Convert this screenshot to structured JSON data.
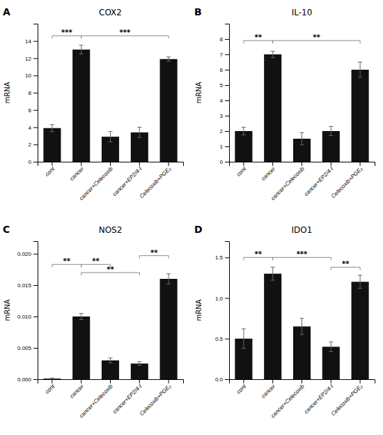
{
  "chart_data": [
    {
      "type": "bar",
      "title": "COX2",
      "panel_label": "A",
      "categories": [
        "cont",
        "cancer",
        "cancer+Celecoxib",
        "cancer+EP2/4-I",
        "Celecoxib+PGE₂"
      ],
      "values": [
        3.9,
        13.0,
        2.9,
        3.4,
        11.9
      ],
      "errors": [
        0.4,
        0.5,
        0.6,
        0.6,
        0.25
      ],
      "ylabel": "mRNA",
      "ylim": [
        0,
        16
      ],
      "yticks": [
        0,
        2,
        4,
        6,
        8,
        10,
        12,
        14
      ],
      "color": "#111111",
      "brackets": [
        {
          "x1": "cont",
          "x2": "cancer",
          "y": 14.6,
          "label": "***"
        },
        {
          "x1": "cancer",
          "x2": "Celecoxib+PGE₂",
          "y": 14.6,
          "label": "***"
        }
      ]
    },
    {
      "type": "bar",
      "title": "IL-10",
      "panel_label": "B",
      "categories": [
        "cont",
        "cancer",
        "cancer+Celecoxib",
        "cancer+EP2/4-I",
        "Celecoxib+PGE₂"
      ],
      "values": [
        2.0,
        7.0,
        1.5,
        2.0,
        6.0
      ],
      "errors": [
        0.25,
        0.2,
        0.4,
        0.3,
        0.5
      ],
      "ylabel": "mRNA",
      "ylim": [
        0,
        9
      ],
      "yticks": [
        0,
        1,
        2,
        3,
        4,
        5,
        6,
        7,
        8
      ],
      "color": "#111111",
      "brackets": [
        {
          "x1": "cont",
          "x2": "cancer",
          "y": 7.9,
          "label": "**"
        },
        {
          "x1": "cancer",
          "x2": "Celecoxib+PGE₂",
          "y": 7.9,
          "label": "**"
        }
      ]
    },
    {
      "type": "bar",
      "title": "NOS2",
      "panel_label": "C",
      "categories": [
        "cont",
        "cancer",
        "cancer+Celecoxib",
        "cancer+EP2/4-I",
        "Celecoxib+PGE₂"
      ],
      "values": [
        0.0001,
        0.01,
        0.003,
        0.0025,
        0.016
      ],
      "errors": [
        0.0001,
        0.0005,
        0.0004,
        0.0003,
        0.0008
      ],
      "ylabel": "mRNA",
      "ylim": [
        0,
        0.022
      ],
      "yticks": [
        {
          "value": 0.0,
          "label": "0.000"
        },
        {
          "value": 0.005,
          "label": "0.005"
        },
        {
          "value": 0.01,
          "label": "0.010"
        },
        {
          "value": 0.015,
          "label": "0.015"
        },
        {
          "value": 0.02,
          "label": "0.020"
        }
      ],
      "color": "#111111",
      "brackets": [
        {
          "x1": "cont",
          "x2": "cancer",
          "y": 0.0183,
          "label": "**"
        },
        {
          "x1": "cancer",
          "x2": "cancer+Celecoxib",
          "y": 0.0183,
          "label": "**"
        },
        {
          "x1": "cancer",
          "x2": "cancer+EP2/4-I",
          "y": 0.017,
          "label": "**"
        },
        {
          "x1": "cancer+EP2/4-I",
          "x2": "Celecoxib+PGE₂",
          "y": 0.0197,
          "label": "**"
        }
      ]
    },
    {
      "type": "bar",
      "title": "IDO1",
      "panel_label": "D",
      "categories": [
        "cont",
        "cancer",
        "cancer+Celecoxib",
        "cancer+EP2/4-I",
        "Celecoxib+PGE₂"
      ],
      "values": [
        0.5,
        1.3,
        0.65,
        0.4,
        1.2
      ],
      "errors": [
        0.12,
        0.08,
        0.1,
        0.06,
        0.08
      ],
      "ylabel": "mRNA",
      "ylim": [
        0,
        1.7
      ],
      "yticks": [
        {
          "value": 0.0,
          "label": "0.0"
        },
        0.5,
        {
          "value": 1.0,
          "label": "1.0"
        },
        1.5
      ],
      "color": "#111111",
      "brackets": [
        {
          "x1": "cont",
          "x2": "cancer",
          "y": 1.5,
          "label": "**"
        },
        {
          "x1": "cancer",
          "x2": "cancer+EP2/4-I",
          "y": 1.5,
          "label": "***"
        },
        {
          "x1": "cancer+EP2/4-I",
          "x2": "Celecoxib+PGE₂",
          "y": 1.38,
          "label": "**"
        }
      ]
    }
  ]
}
